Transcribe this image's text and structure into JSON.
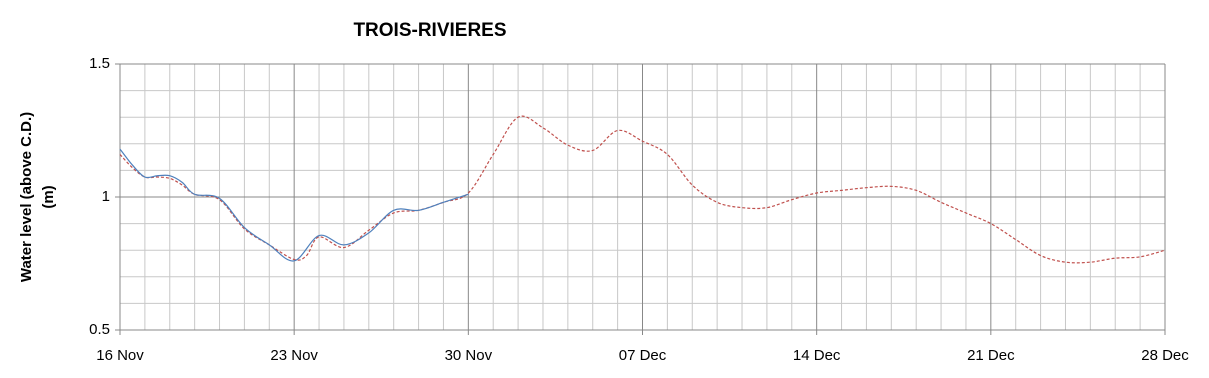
{
  "chart_data": {
    "type": "line",
    "title": "TROIS-RIVIERES",
    "ylabel": "Water level (above C.D.) (m)",
    "xlim": [
      0,
      42
    ],
    "xticks": [
      {
        "value": 0,
        "label": "16 Nov"
      },
      {
        "value": 7,
        "label": "23 Nov"
      },
      {
        "value": 14,
        "label": "30 Nov"
      },
      {
        "value": 21,
        "label": "07 Dec"
      },
      {
        "value": 28,
        "label": "14 Dec"
      },
      {
        "value": 35,
        "label": "21 Dec"
      },
      {
        "value": 42,
        "label": "28 Dec"
      }
    ],
    "ylim": [
      0.5,
      1.5
    ],
    "yticks": [
      0.5,
      1,
      1.5
    ],
    "grid": true,
    "series": [
      {
        "color": "#4f81bd",
        "dashed": false,
        "x": [
          0,
          0.5,
          1,
          1.5,
          2,
          2.5,
          3,
          4,
          5,
          6,
          7,
          8,
          9,
          10,
          11,
          12,
          13,
          14
        ],
        "values": [
          1.18,
          1.12,
          1.075,
          1.08,
          1.08,
          1.055,
          1.01,
          0.995,
          0.885,
          0.82,
          0.76,
          0.855,
          0.82,
          0.865,
          0.95,
          0.95,
          0.98,
          1.01
        ]
      },
      {
        "color": "#c0504d",
        "dashed": true,
        "x": [
          0,
          0.5,
          1,
          1.5,
          2,
          2.5,
          3,
          4,
          5,
          6,
          7,
          7.5,
          8,
          9,
          10,
          11,
          12,
          13,
          14,
          15,
          16,
          17,
          18,
          19,
          20,
          21,
          22,
          23,
          24,
          25,
          26,
          27,
          28,
          29,
          30,
          31,
          32,
          33,
          34,
          35,
          36,
          37,
          38,
          39,
          40,
          41,
          42
        ],
        "values": [
          1.16,
          1.11,
          1.075,
          1.075,
          1.07,
          1.045,
          1.01,
          0.99,
          0.88,
          0.82,
          0.765,
          0.78,
          0.85,
          0.81,
          0.875,
          0.94,
          0.95,
          0.98,
          1.015,
          1.16,
          1.3,
          1.26,
          1.195,
          1.175,
          1.25,
          1.21,
          1.16,
          1.045,
          0.98,
          0.96,
          0.96,
          0.99,
          1.015,
          1.025,
          1.035,
          1.04,
          1.025,
          0.98,
          0.94,
          0.9,
          0.84,
          0.78,
          0.755,
          0.755,
          0.77,
          0.775,
          0.8
        ]
      }
    ]
  }
}
